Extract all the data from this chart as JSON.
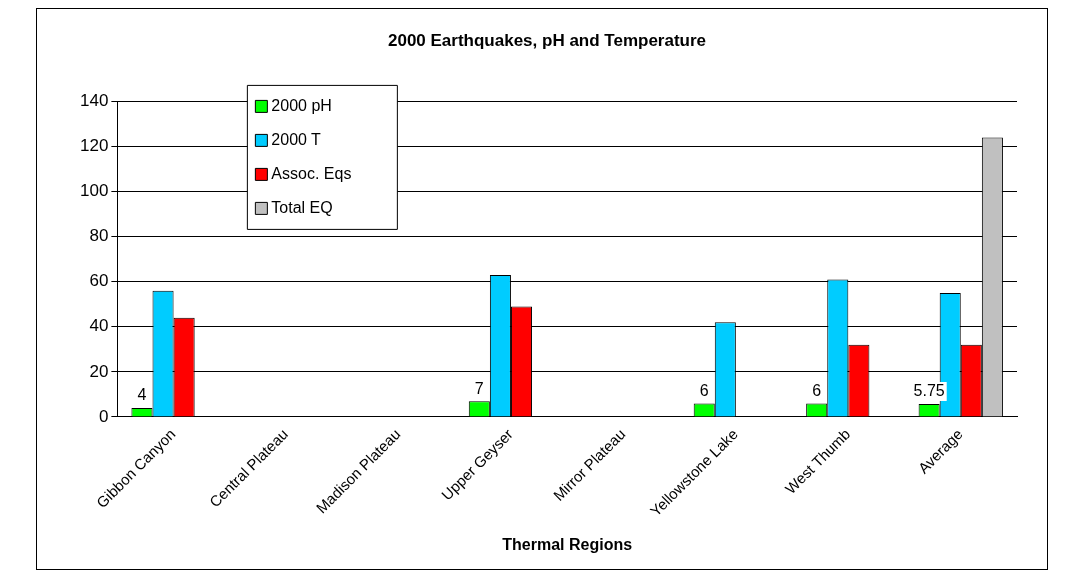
{
  "chart_data": {
    "type": "bar",
    "title": "2000 Earthquakes, pH and Temperature",
    "xlabel": "Thermal Regions",
    "categories": [
      "Gibbon Canyon",
      "Central Plateau",
      "Madison Plateau",
      "Upper Geyser",
      "Mirror Plateau",
      "Yellowstone Lake",
      "West Thumb",
      "Average"
    ],
    "series": [
      {
        "name": "2000 pH",
        "color": "#00ff00",
        "values": [
          4,
          null,
          null,
          7,
          null,
          6,
          6,
          5.75
        ],
        "value_labels": [
          "4",
          null,
          null,
          "7",
          null,
          "6",
          "6",
          "5.75"
        ]
      },
      {
        "name": "2000 T",
        "color": "#00ccff",
        "values": [
          56,
          null,
          null,
          63,
          null,
          42,
          61,
          55
        ]
      },
      {
        "name": "Assoc. Eqs",
        "color": "#ff0000",
        "values": [
          44,
          null,
          null,
          49,
          null,
          null,
          32,
          32
        ]
      },
      {
        "name": "Total EQ",
        "color": "#c0c0c0",
        "values": [
          null,
          null,
          null,
          null,
          null,
          null,
          null,
          124
        ]
      }
    ],
    "ylim": [
      0,
      140
    ],
    "yticks": [
      0,
      20,
      40,
      60,
      80,
      100,
      120,
      140
    ],
    "grid": "y",
    "legend": "top left"
  }
}
